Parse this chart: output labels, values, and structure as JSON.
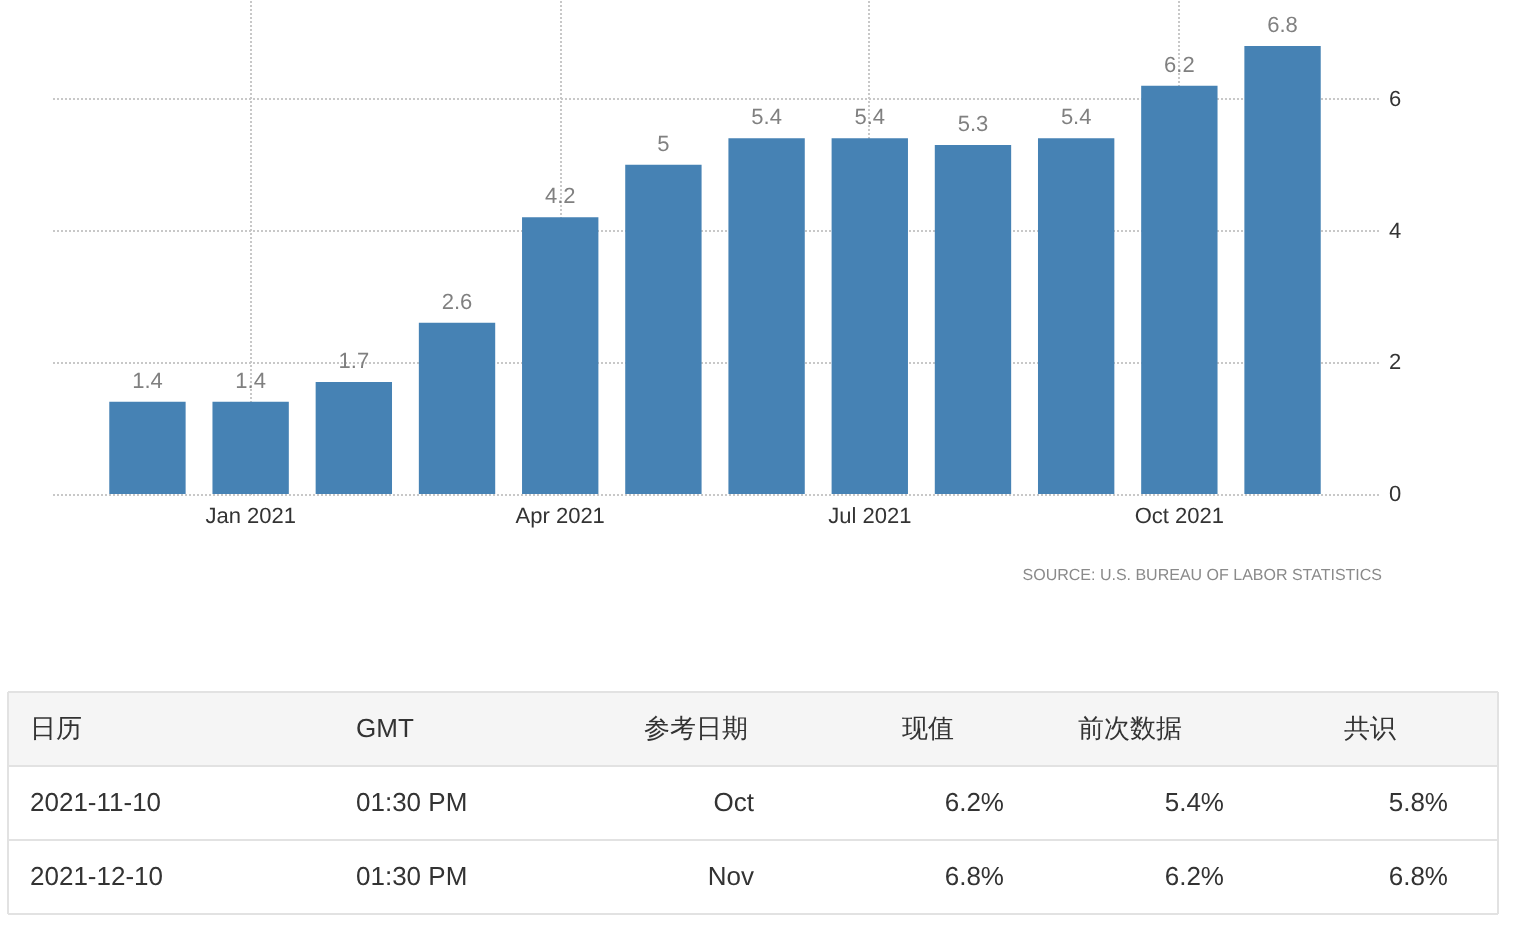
{
  "chart_data": [
    {
      "type": "bar",
      "categories": [
        null,
        "Jan 2021",
        null,
        null,
        "Apr 2021",
        null,
        null,
        "Jul 2021",
        null,
        null,
        "Oct 2021",
        null
      ],
      "values": [
        1.4,
        1.4,
        1.7,
        2.6,
        4.2,
        5,
        5.4,
        5.4,
        5.3,
        5.4,
        6.2,
        6.8
      ],
      "color": "#4682b4",
      "ylim": [
        0,
        7.5
      ],
      "yticks": [
        0,
        2,
        4,
        6
      ],
      "grid": true,
      "data_labels": true,
      "annotations": [
        "SOURCE: U.S. BUREAU OF LABOR STATISTICS"
      ]
    },
    {
      "type": "other",
      "categories": [
        "日历",
        "GMT",
        "参考日期",
        "现值",
        "前次数据",
        "共识"
      ],
      "cell_labels": [
        [
          "2021-11-10",
          "01:30 PM",
          "Oct",
          "6.2%",
          "5.4%",
          "5.8%"
        ],
        [
          "2021-12-10",
          "01:30 PM",
          "Nov",
          "6.8%",
          "6.2%",
          "6.8%"
        ]
      ]
    }
  ]
}
